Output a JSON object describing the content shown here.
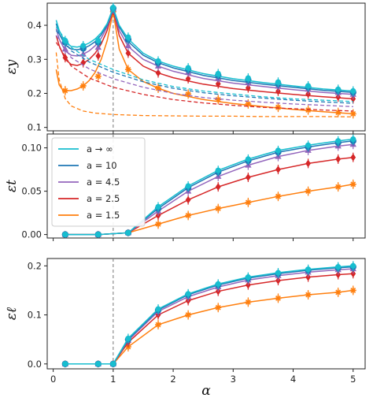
{
  "colors": {
    "inf": "#17becf",
    "a10": "#1f77b4",
    "a45": "#9467bd",
    "a25": "#d62728",
    "a15": "#ff7f0e",
    "vline": "#777777",
    "frame": "#222222"
  },
  "legend": {
    "entries": [
      "a → ∞",
      "a = 10",
      "a = 4.5",
      "a = 2.5",
      "a = 1.5"
    ],
    "placement": "upper-left of middle panel"
  },
  "chart_data": [
    {
      "type": "line",
      "panel": "top",
      "ylabel": "εy",
      "xlim": [
        -0.1,
        5.2
      ],
      "ylim": [
        0.09,
        0.465
      ],
      "xticks": [
        0,
        1,
        2,
        3,
        4,
        5
      ],
      "yticks": [
        0.1,
        0.2,
        0.3,
        0.4
      ],
      "ytick_labels": [
        "0.1",
        "0.2",
        "0.3",
        "0.4"
      ],
      "vline_x": 1,
      "marker_x": [
        0.2,
        0.5,
        0.75,
        1.0,
        1.25,
        1.75,
        2.25,
        2.75,
        3.25,
        3.75,
        4.25,
        4.75,
        5.0
      ],
      "series": [
        {
          "name": "a → ∞",
          "color_key": "inf",
          "curve_x": [
            0.05,
            0.1,
            0.2,
            0.3,
            0.4,
            0.5,
            0.6,
            0.7,
            0.8,
            0.9,
            1.0,
            1.1,
            1.25,
            1.5,
            1.75,
            2.0,
            2.5,
            3.0,
            3.5,
            4.0,
            4.5,
            5.0
          ],
          "curve_y": [
            0.415,
            0.385,
            0.35,
            0.338,
            0.336,
            0.34,
            0.348,
            0.36,
            0.378,
            0.405,
            0.452,
            0.4,
            0.36,
            0.318,
            0.295,
            0.28,
            0.258,
            0.243,
            0.232,
            0.222,
            0.213,
            0.207
          ],
          "marker_y": [
            0.355,
            0.34,
            0.355,
            0.452,
            0.365,
            0.295,
            0.275,
            0.258,
            0.245,
            0.233,
            0.222,
            0.212,
            0.207
          ],
          "dashed_x": [
            0.05,
            0.3,
            0.6,
            1.0,
            1.5,
            2.0,
            2.5,
            3.0,
            3.5,
            4.0,
            4.5,
            5.0
          ],
          "dashed_y": [
            0.395,
            0.335,
            0.3,
            0.27,
            0.24,
            0.22,
            0.207,
            0.198,
            0.19,
            0.184,
            0.18,
            0.176
          ]
        },
        {
          "name": "a = 10",
          "color_key": "a10",
          "curve_x": [
            0.05,
            0.1,
            0.2,
            0.3,
            0.4,
            0.5,
            0.6,
            0.7,
            0.8,
            0.9,
            1.0,
            1.1,
            1.25,
            1.5,
            1.75,
            2.0,
            2.5,
            3.0,
            3.5,
            4.0,
            4.5,
            5.0
          ],
          "curve_y": [
            0.405,
            0.375,
            0.342,
            0.33,
            0.328,
            0.332,
            0.34,
            0.352,
            0.372,
            0.4,
            0.45,
            0.395,
            0.352,
            0.312,
            0.29,
            0.275,
            0.253,
            0.238,
            0.227,
            0.218,
            0.209,
            0.203
          ],
          "marker_y": [
            0.35,
            0.332,
            0.35,
            0.45,
            0.358,
            0.29,
            0.27,
            0.253,
            0.24,
            0.228,
            0.218,
            0.208,
            0.203
          ],
          "dashed_x": [
            0.05,
            0.3,
            0.6,
            1.0,
            1.5,
            2.0,
            2.5,
            3.0,
            3.5,
            4.0,
            4.5,
            5.0
          ],
          "dashed_y": [
            0.385,
            0.325,
            0.292,
            0.262,
            0.234,
            0.215,
            0.202,
            0.193,
            0.186,
            0.18,
            0.175,
            0.171
          ]
        },
        {
          "name": "a = 4.5",
          "color_key": "a45",
          "curve_x": [
            0.05,
            0.1,
            0.2,
            0.3,
            0.4,
            0.5,
            0.6,
            0.7,
            0.8,
            0.9,
            1.0,
            1.1,
            1.25,
            1.5,
            1.75,
            2.0,
            2.5,
            3.0,
            3.5,
            4.0,
            4.5,
            5.0
          ],
          "curve_y": [
            0.39,
            0.36,
            0.325,
            0.312,
            0.31,
            0.315,
            0.325,
            0.34,
            0.362,
            0.395,
            0.448,
            0.385,
            0.338,
            0.3,
            0.28,
            0.265,
            0.244,
            0.23,
            0.22,
            0.211,
            0.203,
            0.197
          ],
          "marker_y": [
            0.33,
            0.315,
            0.335,
            0.448,
            0.34,
            0.28,
            0.262,
            0.245,
            0.232,
            0.221,
            0.212,
            0.202,
            0.197
          ],
          "dashed_x": [
            0.05,
            0.3,
            0.6,
            1.0,
            1.5,
            2.0,
            2.5,
            3.0,
            3.5,
            4.0,
            4.5,
            5.0
          ],
          "dashed_y": [
            0.37,
            0.305,
            0.272,
            0.243,
            0.218,
            0.2,
            0.188,
            0.18,
            0.174,
            0.169,
            0.165,
            0.161
          ]
        },
        {
          "name": "a = 2.5",
          "color_key": "a25",
          "curve_x": [
            0.05,
            0.1,
            0.2,
            0.3,
            0.4,
            0.5,
            0.6,
            0.7,
            0.8,
            0.9,
            1.0,
            1.1,
            1.25,
            1.5,
            1.75,
            2.0,
            2.5,
            3.0,
            3.5,
            4.0,
            4.5,
            5.0
          ],
          "curve_y": [
            0.37,
            0.34,
            0.3,
            0.285,
            0.282,
            0.288,
            0.3,
            0.318,
            0.345,
            0.385,
            0.445,
            0.37,
            0.318,
            0.28,
            0.26,
            0.246,
            0.227,
            0.214,
            0.205,
            0.197,
            0.19,
            0.184
          ],
          "marker_y": [
            0.305,
            0.29,
            0.31,
            0.445,
            0.318,
            0.26,
            0.243,
            0.228,
            0.216,
            0.206,
            0.198,
            0.189,
            0.184
          ],
          "dashed_x": [
            0.05,
            0.3,
            0.6,
            1.0,
            1.5,
            2.0,
            2.5,
            3.0,
            3.5,
            4.0,
            4.5,
            5.0
          ],
          "dashed_y": [
            0.35,
            0.28,
            0.245,
            0.218,
            0.197,
            0.182,
            0.172,
            0.165,
            0.159,
            0.155,
            0.151,
            0.148
          ]
        },
        {
          "name": "a = 1.5",
          "color_key": "a15",
          "curve_x": [
            0.05,
            0.1,
            0.15,
            0.2,
            0.3,
            0.4,
            0.5,
            0.6,
            0.7,
            0.8,
            0.9,
            1.0,
            1.1,
            1.25,
            1.5,
            1.75,
            2.0,
            2.5,
            3.0,
            3.5,
            4.0,
            4.5,
            5.0
          ],
          "curve_y": [
            0.27,
            0.225,
            0.212,
            0.208,
            0.208,
            0.213,
            0.222,
            0.238,
            0.262,
            0.3,
            0.355,
            0.44,
            0.33,
            0.27,
            0.235,
            0.215,
            0.2,
            0.182,
            0.17,
            0.161,
            0.153,
            0.146,
            0.14
          ],
          "marker_y": [
            0.208,
            0.222,
            0.25,
            0.44,
            0.27,
            0.215,
            0.198,
            0.182,
            0.169,
            0.159,
            0.151,
            0.144,
            0.14
          ],
          "dashed_x": [
            0.05,
            0.1,
            0.2,
            0.3,
            0.5,
            0.7,
            1.0,
            1.5,
            2.0,
            2.5,
            3.0,
            3.5,
            4.0,
            4.5,
            5.0
          ],
          "dashed_y": [
            0.32,
            0.24,
            0.185,
            0.163,
            0.148,
            0.142,
            0.138,
            0.135,
            0.134,
            0.133,
            0.133,
            0.132,
            0.132,
            0.132,
            0.131
          ]
        }
      ]
    },
    {
      "type": "line",
      "panel": "middle",
      "ylabel": "εt",
      "xlim": [
        -0.1,
        5.2
      ],
      "ylim": [
        -0.004,
        0.116
      ],
      "xticks": [
        0,
        1,
        2,
        3,
        4,
        5
      ],
      "yticks": [
        0.0,
        0.05,
        0.1
      ],
      "ytick_labels": [
        "0.00",
        "0.05",
        "0.10"
      ],
      "vline_x": 1,
      "series": [
        {
          "name": "a → ∞",
          "color_key": "inf",
          "x": [
            0.2,
            0.75,
            1.25,
            1.75,
            2.25,
            2.75,
            3.25,
            3.75,
            4.25,
            4.75,
            5.0
          ],
          "y": [
            0.0,
            0.0,
            0.002,
            0.032,
            0.056,
            0.074,
            0.087,
            0.097,
            0.103,
            0.108,
            0.11
          ]
        },
        {
          "name": "a = 10",
          "color_key": "a10",
          "x": [
            0.2,
            0.75,
            1.25,
            1.75,
            2.25,
            2.75,
            3.25,
            3.75,
            4.25,
            4.75,
            5.0
          ],
          "y": [
            0.0,
            0.0,
            0.002,
            0.03,
            0.054,
            0.072,
            0.085,
            0.095,
            0.101,
            0.106,
            0.108
          ]
        },
        {
          "name": "a = 4.5",
          "color_key": "a45",
          "x": [
            0.2,
            0.75,
            1.25,
            1.75,
            2.25,
            2.75,
            3.25,
            3.75,
            4.25,
            4.75,
            5.0
          ],
          "y": [
            0.0,
            0.0,
            0.002,
            0.027,
            0.05,
            0.067,
            0.08,
            0.09,
            0.097,
            0.102,
            0.104
          ]
        },
        {
          "name": "a = 2.5",
          "color_key": "a25",
          "x": [
            0.2,
            0.75,
            1.25,
            1.75,
            2.25,
            2.75,
            3.25,
            3.75,
            4.25,
            4.75,
            5.0
          ],
          "y": [
            0.0,
            0.0,
            0.002,
            0.022,
            0.04,
            0.055,
            0.066,
            0.075,
            0.082,
            0.087,
            0.089
          ]
        },
        {
          "name": "a = 1.5",
          "color_key": "a15",
          "x": [
            0.2,
            0.75,
            1.25,
            1.75,
            2.25,
            2.75,
            3.25,
            3.75,
            4.25,
            4.75,
            5.0
          ],
          "y": [
            0.0,
            0.0,
            0.002,
            0.012,
            0.022,
            0.03,
            0.037,
            0.044,
            0.05,
            0.055,
            0.058
          ]
        }
      ]
    },
    {
      "type": "line",
      "panel": "bottom",
      "ylabel": "εℓ",
      "xlabel": "α",
      "xlim": [
        -0.1,
        5.2
      ],
      "ylim": [
        -0.01,
        0.215
      ],
      "xticks": [
        0,
        1,
        2,
        3,
        4,
        5
      ],
      "xtick_labels": [
        "0",
        "1",
        "2",
        "3",
        "4",
        "5"
      ],
      "yticks": [
        0.0,
        0.1,
        0.2
      ],
      "ytick_labels": [
        "0.0",
        "0.1",
        "0.2"
      ],
      "vline_x": 1,
      "series": [
        {
          "name": "a → ∞",
          "color_key": "inf",
          "x": [
            0.2,
            0.75,
            1.0,
            1.25,
            1.75,
            2.25,
            2.75,
            3.25,
            3.75,
            4.25,
            4.75,
            5.0
          ],
          "y": [
            0.0,
            0.0,
            0.0,
            0.052,
            0.112,
            0.143,
            0.163,
            0.177,
            0.186,
            0.193,
            0.198,
            0.2
          ]
        },
        {
          "name": "a = 10",
          "color_key": "a10",
          "x": [
            0.2,
            0.75,
            1.0,
            1.25,
            1.75,
            2.25,
            2.75,
            3.25,
            3.75,
            4.25,
            4.75,
            5.0
          ],
          "y": [
            0.0,
            0.0,
            0.0,
            0.05,
            0.11,
            0.141,
            0.161,
            0.175,
            0.184,
            0.191,
            0.196,
            0.198
          ]
        },
        {
          "name": "a = 4.5",
          "color_key": "a45",
          "x": [
            0.2,
            0.75,
            1.0,
            1.25,
            1.75,
            2.25,
            2.75,
            3.25,
            3.75,
            4.25,
            4.75,
            5.0
          ],
          "y": [
            0.0,
            0.0,
            0.0,
            0.048,
            0.107,
            0.137,
            0.157,
            0.171,
            0.18,
            0.187,
            0.192,
            0.194
          ]
        },
        {
          "name": "a = 2.5",
          "color_key": "a25",
          "x": [
            0.2,
            0.75,
            1.0,
            1.25,
            1.75,
            2.25,
            2.75,
            3.25,
            3.75,
            4.25,
            4.75,
            5.0
          ],
          "y": [
            0.0,
            0.0,
            0.0,
            0.044,
            0.1,
            0.129,
            0.148,
            0.161,
            0.17,
            0.177,
            0.182,
            0.184
          ]
        },
        {
          "name": "a = 1.5",
          "color_key": "a15",
          "x": [
            0.2,
            0.75,
            1.0,
            1.25,
            1.75,
            2.25,
            2.75,
            3.25,
            3.75,
            4.25,
            4.75,
            5.0
          ],
          "y": [
            0.0,
            0.0,
            0.0,
            0.035,
            0.08,
            0.1,
            0.115,
            0.126,
            0.134,
            0.141,
            0.146,
            0.15
          ]
        }
      ]
    }
  ]
}
